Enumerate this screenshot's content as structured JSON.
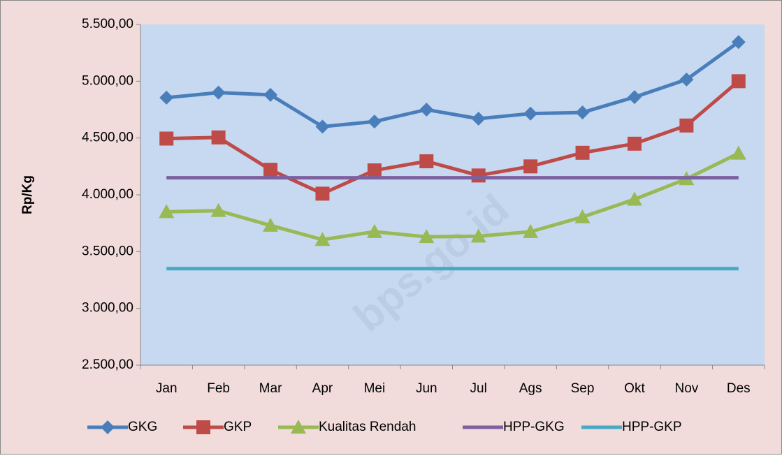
{
  "chart_data": {
    "type": "line",
    "y_label": "Rp/Kg",
    "watermark": "bps.go.id",
    "categories": [
      "Jan",
      "Feb",
      "Mar",
      "Apr",
      "Mei",
      "Jun",
      "Jul",
      "Ags",
      "Sep",
      "Okt",
      "Nov",
      "Des"
    ],
    "ylim": [
      2500,
      5500
    ],
    "yticks": [
      {
        "value": 2500,
        "label": "2.500,00"
      },
      {
        "value": 3000,
        "label": "3.000,00"
      },
      {
        "value": 3500,
        "label": "3.500,00"
      },
      {
        "value": 4000,
        "label": "4.000,00"
      },
      {
        "value": 4500,
        "label": "4.500,00"
      },
      {
        "value": 5000,
        "label": "5.000,00"
      },
      {
        "value": 5500,
        "label": "5.500,00"
      }
    ],
    "grid": false,
    "legend": "bottom",
    "series": [
      {
        "name": "GKG",
        "color": "#4a7ebb",
        "marker": "diamond",
        "values": [
          4855,
          4900,
          4880,
          4600,
          4645,
          4750,
          4670,
          4715,
          4725,
          4860,
          5015,
          5345
        ]
      },
      {
        "name": "GKP",
        "color": "#be4b48",
        "marker": "square",
        "values": [
          4495,
          4505,
          4220,
          4010,
          4215,
          4295,
          4170,
          4250,
          4370,
          4450,
          4610,
          5000
        ]
      },
      {
        "name": "Kualitas Rendah",
        "color": "#98b954",
        "marker": "triangle",
        "values": [
          3850,
          3860,
          3730,
          3605,
          3675,
          3630,
          3635,
          3675,
          3805,
          3960,
          4140,
          4365
        ]
      },
      {
        "name": "HPP-GKG",
        "color": "#7d60a0",
        "marker": "none",
        "values": [
          4150,
          4150,
          4150,
          4150,
          4150,
          4150,
          4150,
          4150,
          4150,
          4150,
          4150,
          4150
        ]
      },
      {
        "name": "HPP-GKP",
        "color": "#46aac5",
        "marker": "none",
        "values": [
          3350,
          3350,
          3350,
          3350,
          3350,
          3350,
          3350,
          3350,
          3350,
          3350,
          3350,
          3350
        ]
      }
    ]
  }
}
